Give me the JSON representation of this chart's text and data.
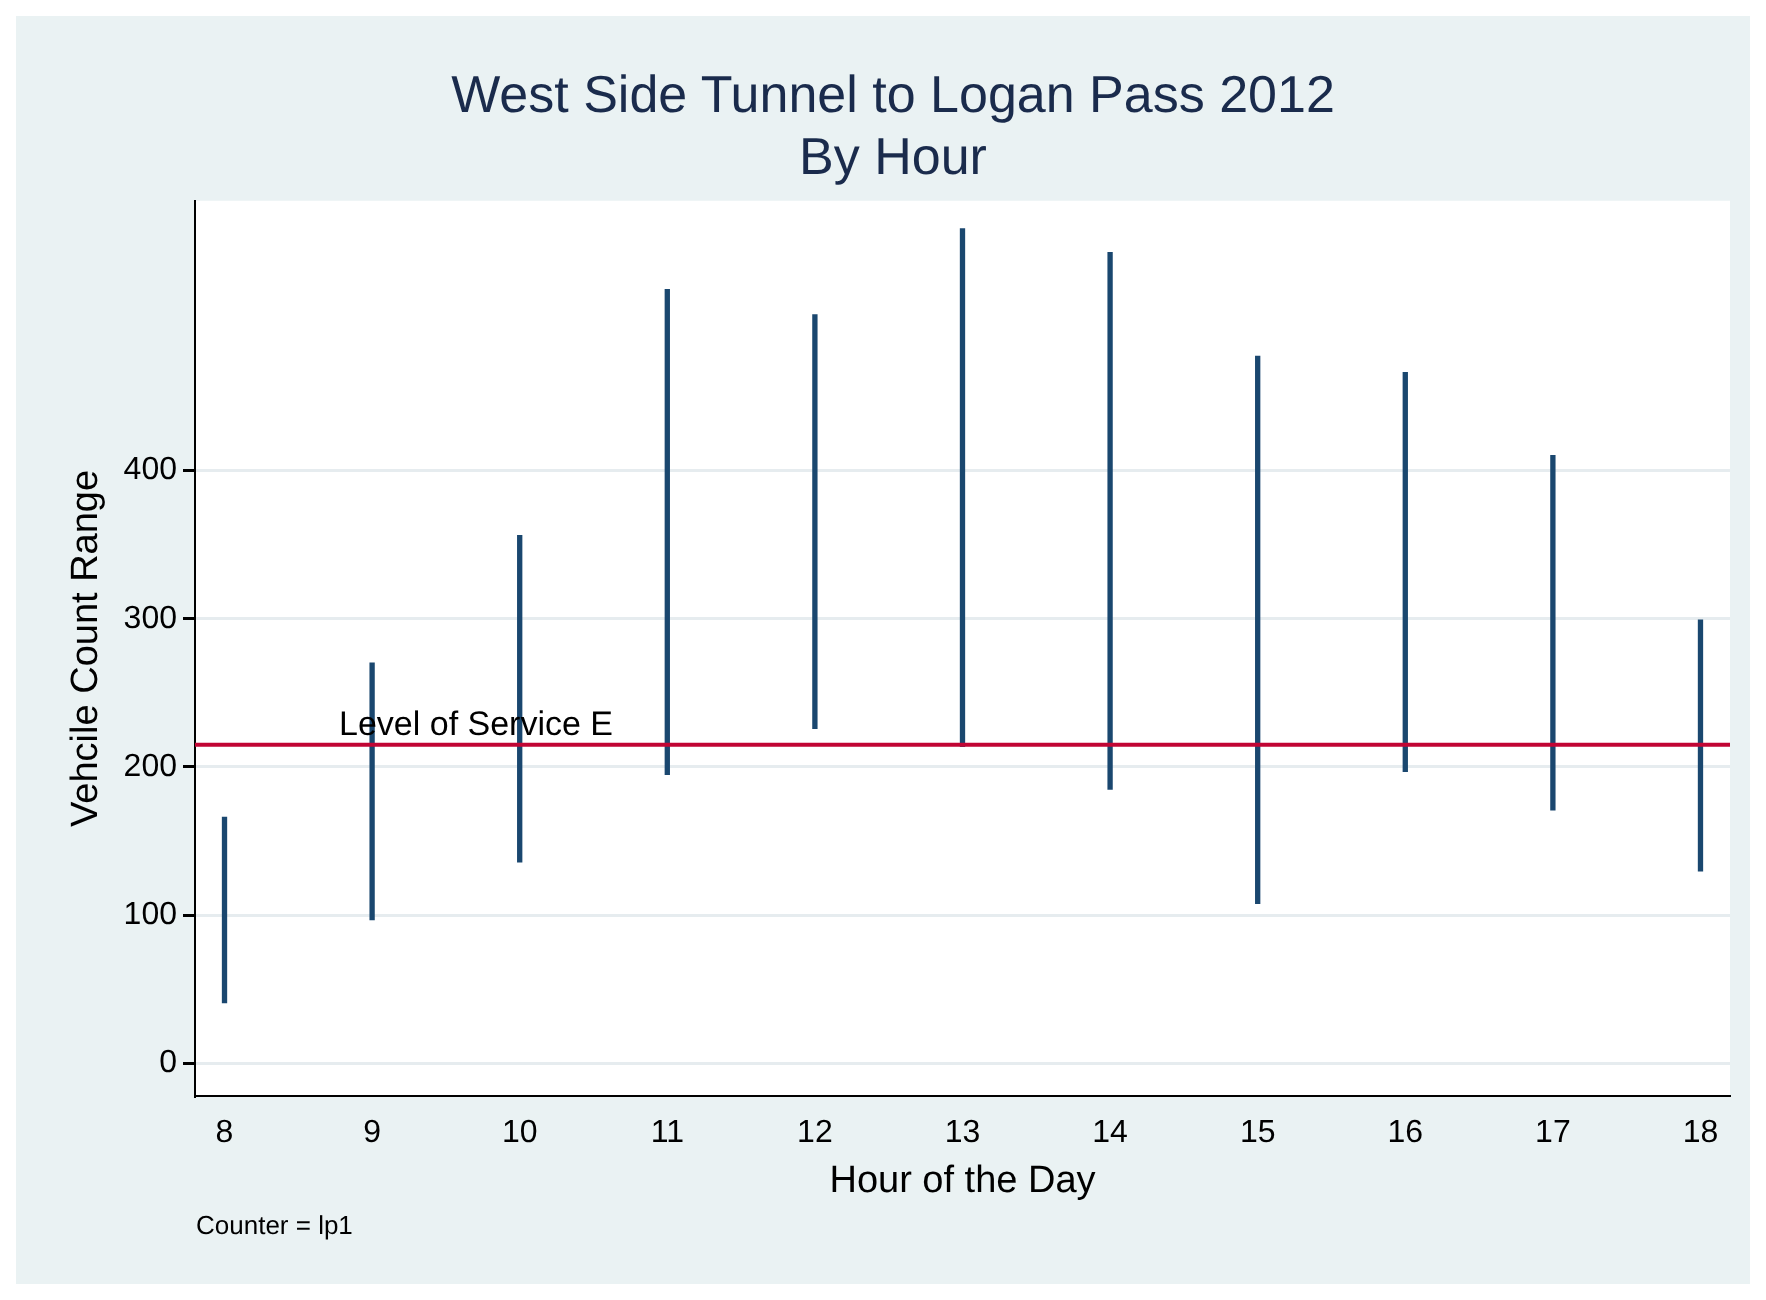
{
  "chart_data": {
    "type": "bar",
    "title": "West Side Tunnel to Logan Pass 2012",
    "subtitle": "By Hour",
    "xlabel": "Hour of the Day",
    "ylabel": "Vehcile Count Range",
    "x": [
      8,
      9,
      10,
      11,
      12,
      13,
      14,
      15,
      16,
      17,
      18
    ],
    "base": [
      41,
      97,
      136,
      195,
      226,
      214,
      185,
      108,
      197,
      171,
      130
    ],
    "values": [
      125,
      173,
      220,
      327,
      279,
      349,
      362,
      369,
      269,
      239,
      169
    ],
    "color": "#1a476f",
    "xlim": [
      7.8,
      18.2
    ],
    "xticks": [
      8,
      9,
      10,
      11,
      12,
      13,
      14,
      15,
      16,
      17,
      18
    ],
    "ylim": [
      -22,
      582
    ],
    "yticks": [
      0,
      100,
      200,
      300,
      400
    ],
    "grid": "y",
    "legend": false,
    "ref_lines": [
      {
        "axis": "y",
        "value": 215,
        "label": "Level of Service E",
        "color": "#c10534"
      }
    ],
    "annotations": [
      "Counter = lp1"
    ]
  }
}
